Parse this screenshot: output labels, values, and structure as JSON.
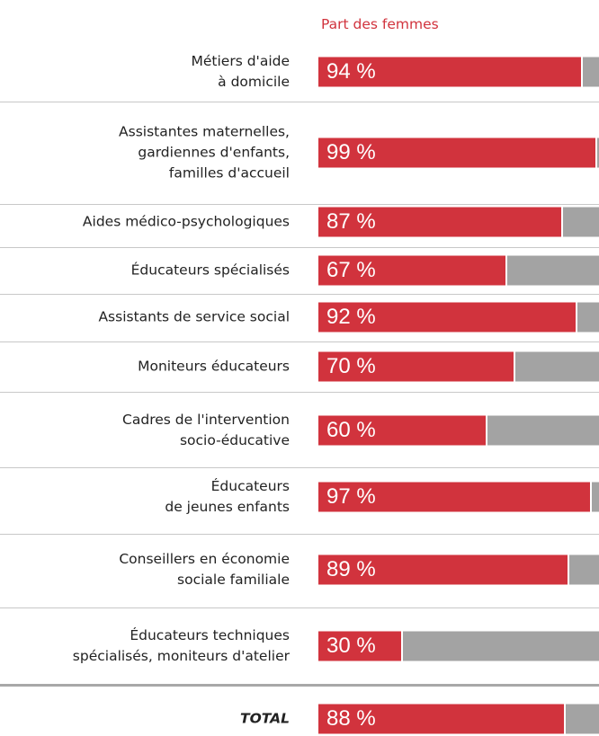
{
  "chart_data": {
    "type": "bar",
    "orientation": "horizontal",
    "legend": "Part des femmes",
    "categories": [
      "Métiers d'aide\nà domicile",
      "Assistantes maternelles,\ngardiennes d'enfants,\nfamilles d'accueil",
      "Aides médico-psychologiques",
      "Éducateurs spécialisés",
      "Assistants de service social",
      "Moniteurs éducateurs",
      "Cadres de l'intervention\nsocio-éducative",
      "Éducateurs\nde jeunes enfants",
      "Conseillers en économie\nsociale familiale",
      "Éducateurs techniques\nspécialisés, moniteurs d'atelier"
    ],
    "values": [
      94,
      99,
      87,
      67,
      92,
      70,
      60,
      97,
      89,
      30
    ],
    "value_labels": [
      "94 %",
      "99 %",
      "87 %",
      "67 %",
      "92 %",
      "70 %",
      "60 %",
      "97 %",
      "89 %",
      "30 %"
    ],
    "total": {
      "label": "TOTAL",
      "value": 88,
      "value_label": "88 %"
    },
    "xlim": [
      0,
      100
    ],
    "color": "#d1333d"
  }
}
